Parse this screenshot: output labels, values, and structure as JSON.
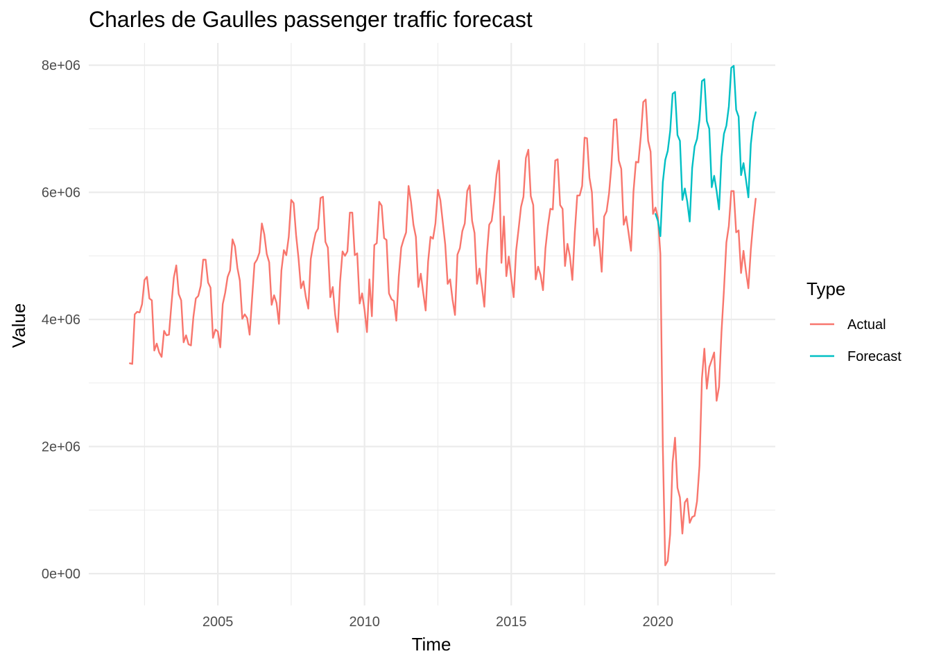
{
  "chart_data": {
    "type": "line",
    "title": "Charles de Gaulles passenger traffic forecast",
    "xlabel": "Time",
    "ylabel": "Value",
    "xlim": [
      2000.6,
      2024.0
    ],
    "ylim": [
      -500000,
      8350000
    ],
    "x_ticks": [
      2005,
      2010,
      2015,
      2020
    ],
    "x_tick_labels": [
      "2005",
      "2010",
      "2015",
      "2020"
    ],
    "y_ticks": [
      0,
      2000000,
      4000000,
      6000000,
      8000000
    ],
    "y_tick_labels": [
      "0e+00",
      "2e+06",
      "4e+06",
      "6e+06",
      "8e+06"
    ],
    "grid": true,
    "legend": {
      "title": "Type",
      "position": "right"
    },
    "series": [
      {
        "name": "Actual",
        "color": "#F8766D",
        "start": 2002.0,
        "step": 0.083333,
        "values": [
          3310000,
          3300000,
          4080000,
          4120000,
          4110000,
          4240000,
          4620000,
          4670000,
          4330000,
          4300000,
          3510000,
          3620000,
          3480000,
          3410000,
          3820000,
          3750000,
          3760000,
          4230000,
          4660000,
          4850000,
          4400000,
          4300000,
          3640000,
          3750000,
          3610000,
          3590000,
          4040000,
          4330000,
          4370000,
          4530000,
          4940000,
          4940000,
          4580000,
          4500000,
          3710000,
          3840000,
          3810000,
          3560000,
          4240000,
          4420000,
          4670000,
          4770000,
          5260000,
          5150000,
          4810000,
          4610000,
          4010000,
          4080000,
          4020000,
          3760000,
          4330000,
          4880000,
          4940000,
          5050000,
          5510000,
          5340000,
          5030000,
          4900000,
          4230000,
          4380000,
          4260000,
          3930000,
          4770000,
          5090000,
          5010000,
          5300000,
          5880000,
          5830000,
          5330000,
          4960000,
          4490000,
          4600000,
          4350000,
          4170000,
          4950000,
          5180000,
          5360000,
          5430000,
          5910000,
          5930000,
          5220000,
          5130000,
          4350000,
          4510000,
          4070000,
          3800000,
          4590000,
          5070000,
          5000000,
          5070000,
          5680000,
          5680000,
          5010000,
          5040000,
          4250000,
          4410000,
          4150000,
          3800000,
          4630000,
          4050000,
          5170000,
          5200000,
          5850000,
          5790000,
          5280000,
          5250000,
          4410000,
          4320000,
          4290000,
          3980000,
          4680000,
          5130000,
          5260000,
          5370000,
          6100000,
          5850000,
          5490000,
          5300000,
          4510000,
          4720000,
          4420000,
          4140000,
          4910000,
          5300000,
          5270000,
          5510000,
          6040000,
          5880000,
          5530000,
          5180000,
          4560000,
          4630000,
          4310000,
          4070000,
          5020000,
          5120000,
          5390000,
          5510000,
          6020000,
          6110000,
          5550000,
          5360000,
          4560000,
          4800000,
          4520000,
          4200000,
          5010000,
          5490000,
          5550000,
          5860000,
          6280000,
          6500000,
          4890000,
          5620000,
          4680000,
          4990000,
          4660000,
          4350000,
          5080000,
          5420000,
          5770000,
          5930000,
          6540000,
          6670000,
          5940000,
          5800000,
          4630000,
          4830000,
          4700000,
          4460000,
          5120000,
          5470000,
          5740000,
          5730000,
          6500000,
          6520000,
          5800000,
          5740000,
          4840000,
          5190000,
          4990000,
          4620000,
          5370000,
          5950000,
          5950000,
          6100000,
          6860000,
          6850000,
          6230000,
          6000000,
          5160000,
          5430000,
          5230000,
          4750000,
          5620000,
          5700000,
          5980000,
          6430000,
          7140000,
          7150000,
          6500000,
          6370000,
          5490000,
          5620000,
          5360000,
          5080000,
          6010000,
          6480000,
          6470000,
          6880000,
          7420000,
          7460000,
          6810000,
          6640000,
          5660000,
          5760000,
          5600000,
          5030000,
          2000000,
          130000,
          200000,
          620000,
          1750000,
          2140000,
          1350000,
          1200000,
          630000,
          1120000,
          1180000,
          800000,
          890000,
          910000,
          1140000,
          1700000,
          3070000,
          3540000,
          2910000,
          3250000,
          3360000,
          3480000,
          2720000,
          2940000,
          3800000,
          4460000,
          5210000,
          5470000,
          6020000,
          6020000,
          5370000,
          5400000,
          4730000,
          5080000,
          4760000,
          4490000,
          5100000,
          5540000,
          5900000
        ]
      },
      {
        "name": "Forecast",
        "color": "#00BFC4",
        "start": 2019.917,
        "step": 0.083333,
        "values": [
          5660000,
          5550000,
          5310000,
          6160000,
          6510000,
          6650000,
          6960000,
          7550000,
          7580000,
          6900000,
          6810000,
          5880000,
          6060000,
          5850000,
          5540000,
          6380000,
          6720000,
          6840000,
          7140000,
          7750000,
          7780000,
          7120000,
          7000000,
          6080000,
          6260000,
          6020000,
          5730000,
          6560000,
          6920000,
          7050000,
          7350000,
          7960000,
          7990000,
          7300000,
          7190000,
          6270000,
          6460000,
          6200000,
          5920000,
          6760000,
          7110000,
          7260000
        ]
      }
    ]
  }
}
